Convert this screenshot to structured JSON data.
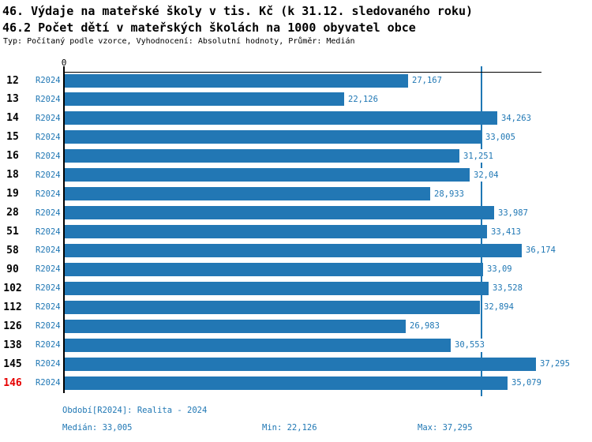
{
  "title_line1": "46. Výdaje na mateřské školy v tis. Kč (k 31.12. sledovaného roku)",
  "title_line2": "46.2 Počet dětí v mateřských školách na 1000 obyvatel obce",
  "subtitle": "Typ: Počítaný podle vzorce, Vyhodnocení: Absolutní hodnoty, Průměr: Medián",
  "axis": {
    "zero_label": "0"
  },
  "chart_data": {
    "type": "bar",
    "orientation": "horizontal",
    "title": "46. Výdaje na mateřské školy v tis. Kč (k 31.12. sledovaného roku)",
    "subtitle": "46.2 Počet dětí v mateřských školách na 1000 obyvatel obce",
    "series_label": "R2024",
    "categories": [
      "12",
      "13",
      "14",
      "15",
      "16",
      "18",
      "19",
      "28",
      "51",
      "58",
      "90",
      "102",
      "112",
      "126",
      "138",
      "145",
      "146"
    ],
    "values": [
      27.167,
      22.126,
      34.263,
      33.005,
      31.251,
      32.04,
      28.933,
      33.987,
      33.413,
      36.174,
      33.09,
      33.528,
      32.894,
      26.983,
      30.553,
      37.295,
      35.079
    ],
    "value_labels": [
      "27,167",
      "22,126",
      "34,263",
      "33,005",
      "31,251",
      "32,04",
      "28,933",
      "33,987",
      "33,413",
      "36,174",
      "33,09",
      "33,528",
      "32,894",
      "26,983",
      "30,553",
      "37,295",
      "35,079"
    ],
    "highlighted_category": "146",
    "median_value": 33.005,
    "xlim": [
      0,
      37.8
    ],
    "grid": false,
    "legend": false,
    "colors": {
      "bar": "#2277b4",
      "median_line": "#1f77b4",
      "value_text": "#1f77b4",
      "series_text": "#1f77b4",
      "category_text": "#000000",
      "highlight_text": "#e60000",
      "footer_text": "#1f77b4"
    }
  },
  "footer": {
    "period": "Období[R2024]: Realita - 2024",
    "median": "Medián: 33,005",
    "min": "Min: 22,126",
    "max": "Max: 37,295"
  }
}
